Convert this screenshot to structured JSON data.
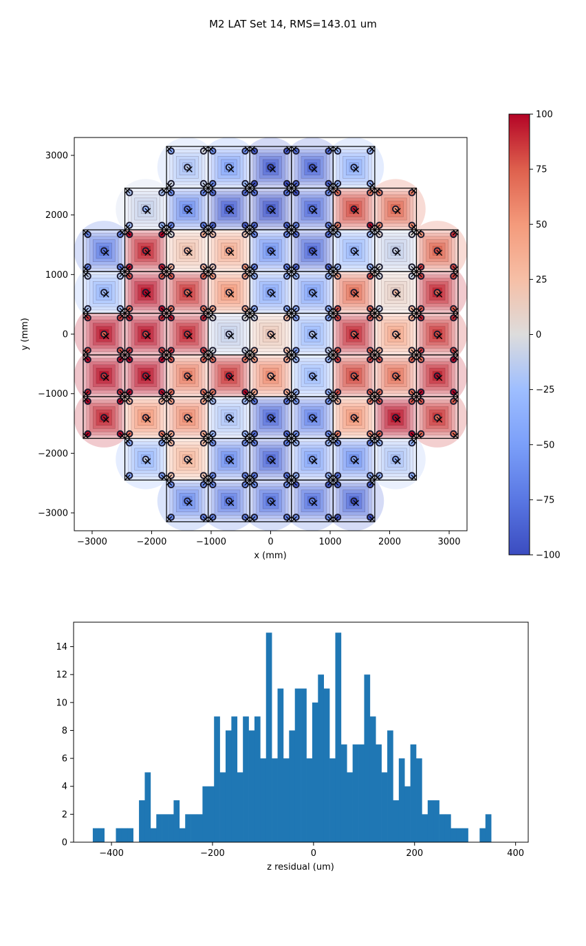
{
  "title": "M2 LAT Set 14, RMS=143.01 um",
  "chart_data": [
    {
      "type": "heatmap",
      "xlabel": "x (mm)",
      "ylabel": "y (mm)",
      "xlim": [
        -3300,
        3300
      ],
      "ylim": [
        -3300,
        3300
      ],
      "xticks": [
        -3000,
        -2000,
        -1000,
        0,
        1000,
        2000,
        3000
      ],
      "yticks": [
        -3000,
        -2000,
        -1000,
        0,
        1000,
        2000,
        3000
      ],
      "xtick_labels": [
        "−3000",
        "−2000",
        "−1000",
        "0",
        "1000",
        "2000",
        "3000"
      ],
      "ytick_labels": [
        "−3000",
        "−2000",
        "−1000",
        "0",
        "1000",
        "2000",
        "3000"
      ],
      "colormap": "coolwarm",
      "color_range": [
        -100,
        100
      ],
      "colorbar_ticks": [
        -100,
        -75,
        -50,
        -25,
        0,
        25,
        50,
        75,
        100
      ],
      "colorbar_tick_labels": [
        "−100",
        "−75",
        "−50",
        "−25",
        "0",
        "25",
        "50",
        "75",
        "100"
      ],
      "panel_pitch_mm": 700,
      "panel_rows": [
        {
          "y": 2800,
          "columns": [
            -2,
            -1,
            0,
            1,
            2
          ],
          "values": [
            -20,
            -45,
            -85,
            -80,
            -35
          ]
        },
        {
          "y": 2100,
          "columns": [
            -3,
            -2,
            -1,
            0,
            1,
            2,
            3
          ],
          "values": [
            -10,
            -60,
            -85,
            -90,
            -80,
            80,
            70
          ]
        },
        {
          "y": 1400,
          "columns": [
            -4,
            -3,
            -2,
            -1,
            0,
            1,
            2,
            3,
            4
          ],
          "values": [
            -70,
            90,
            20,
            35,
            -55,
            -80,
            -30,
            -10,
            70
          ]
        },
        {
          "y": 700,
          "columns": [
            -4,
            -3,
            -2,
            -1,
            0,
            1,
            2,
            3,
            4
          ],
          "values": [
            -30,
            95,
            85,
            50,
            -40,
            -45,
            65,
            10,
            90
          ]
        },
        {
          "y": 0,
          "columns": [
            -4,
            -3,
            -2,
            -1,
            0,
            1,
            2,
            3,
            4
          ],
          "values": [
            95,
            95,
            90,
            -10,
            15,
            -30,
            90,
            40,
            85
          ]
        },
        {
          "y": -700,
          "columns": [
            -4,
            -3,
            -2,
            -1,
            0,
            1,
            2,
            3,
            4
          ],
          "values": [
            95,
            95,
            60,
            85,
            55,
            -25,
            80,
            65,
            90
          ]
        },
        {
          "y": -1400,
          "columns": [
            -4,
            -3,
            -2,
            -1,
            0,
            1,
            2,
            3,
            4
          ],
          "values": [
            90,
            50,
            55,
            -20,
            -80,
            -65,
            50,
            95,
            85
          ]
        },
        {
          "y": -2100,
          "columns": [
            -3,
            -2,
            -1,
            0,
            1,
            2,
            3
          ],
          "values": [
            -30,
            30,
            -60,
            -80,
            -45,
            -55,
            -20
          ]
        },
        {
          "y": -2800,
          "columns": [
            -2,
            -1,
            0,
            1,
            2
          ],
          "values": [
            -60,
            -70,
            -75,
            -75,
            -80
          ]
        }
      ]
    },
    {
      "type": "bar",
      "subtype": "histogram",
      "xlabel": "z residual (um)",
      "ylabel": "",
      "xlim": [
        -475,
        425
      ],
      "ylim": [
        0,
        15.75
      ],
      "xticks": [
        -400,
        -200,
        0,
        200,
        400
      ],
      "yticks": [
        0,
        2,
        4,
        6,
        8,
        10,
        12,
        14
      ],
      "xtick_labels": [
        "−400",
        "−200",
        "0",
        "200",
        "400"
      ],
      "ytick_labels": [
        "0",
        "2",
        "4",
        "6",
        "8",
        "10",
        "12",
        "14"
      ],
      "bin_start": -437,
      "bin_width": 11.43,
      "counts": [
        1,
        1,
        0,
        0,
        1,
        1,
        1,
        0,
        3,
        5,
        1,
        2,
        2,
        2,
        3,
        1,
        2,
        2,
        2,
        4,
        4,
        9,
        5,
        8,
        9,
        5,
        9,
        8,
        9,
        6,
        15,
        6,
        11,
        6,
        8,
        11,
        11,
        6,
        10,
        12,
        11,
        6,
        15,
        7,
        5,
        7,
        7,
        12,
        9,
        7,
        5,
        8,
        3,
        6,
        4,
        7,
        6,
        2,
        3,
        3,
        2,
        2,
        1,
        1,
        1,
        0,
        0,
        1,
        2
      ]
    }
  ]
}
